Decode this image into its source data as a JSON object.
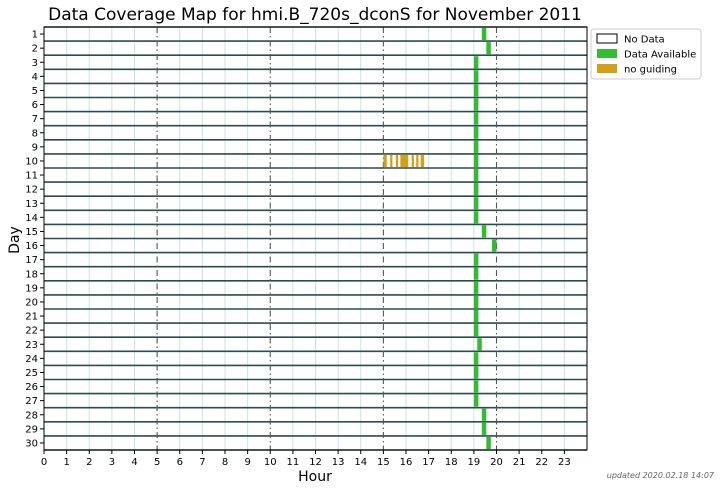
{
  "chart_data": {
    "type": "heatmap",
    "title": "Data Coverage Map for hmi.B_720s_dconS for November 2011",
    "xlabel": "Hour",
    "ylabel": "Day",
    "xlim": [
      0,
      24
    ],
    "x_ticks": [
      0,
      1,
      2,
      3,
      4,
      5,
      6,
      7,
      8,
      9,
      10,
      11,
      12,
      13,
      14,
      15,
      16,
      17,
      18,
      19,
      20,
      21,
      22,
      23
    ],
    "days": [
      1,
      2,
      3,
      4,
      5,
      6,
      7,
      8,
      9,
      10,
      11,
      12,
      13,
      14,
      15,
      16,
      17,
      18,
      19,
      20,
      21,
      22,
      23,
      24,
      25,
      26,
      27,
      28,
      29,
      30
    ],
    "major_hours": [
      5,
      10,
      15,
      20
    ],
    "legend": [
      {
        "label": "No Data",
        "color": "#ffffff"
      },
      {
        "label": "Data Available",
        "color": "#33bb33"
      },
      {
        "label": "no guiding",
        "color": "#d4a017"
      }
    ],
    "data_available": [
      {
        "day": 1,
        "start": 19.35,
        "end": 19.55
      },
      {
        "day": 2,
        "start": 19.55,
        "end": 19.75
      },
      {
        "day": 3,
        "start": 19.0,
        "end": 19.2
      },
      {
        "day": 4,
        "start": 19.0,
        "end": 19.2
      },
      {
        "day": 5,
        "start": 19.0,
        "end": 19.2
      },
      {
        "day": 6,
        "start": 19.0,
        "end": 19.2
      },
      {
        "day": 7,
        "start": 19.0,
        "end": 19.2
      },
      {
        "day": 8,
        "start": 19.0,
        "end": 19.2
      },
      {
        "day": 9,
        "start": 19.0,
        "end": 19.2
      },
      {
        "day": 10,
        "start": 19.0,
        "end": 19.2
      },
      {
        "day": 11,
        "start": 19.0,
        "end": 19.2
      },
      {
        "day": 12,
        "start": 19.0,
        "end": 19.2
      },
      {
        "day": 13,
        "start": 19.0,
        "end": 19.2
      },
      {
        "day": 14,
        "start": 19.0,
        "end": 19.2
      },
      {
        "day": 15,
        "start": 19.35,
        "end": 19.55
      },
      {
        "day": 16,
        "start": 19.8,
        "end": 20.0
      },
      {
        "day": 17,
        "start": 19.0,
        "end": 19.2
      },
      {
        "day": 18,
        "start": 19.0,
        "end": 19.2
      },
      {
        "day": 19,
        "start": 19.0,
        "end": 19.2
      },
      {
        "day": 20,
        "start": 19.0,
        "end": 19.2
      },
      {
        "day": 21,
        "start": 19.0,
        "end": 19.2
      },
      {
        "day": 22,
        "start": 19.0,
        "end": 19.2
      },
      {
        "day": 23,
        "start": 19.15,
        "end": 19.35
      },
      {
        "day": 24,
        "start": 19.0,
        "end": 19.2
      },
      {
        "day": 25,
        "start": 19.0,
        "end": 19.2
      },
      {
        "day": 26,
        "start": 19.0,
        "end": 19.2
      },
      {
        "day": 27,
        "start": 19.0,
        "end": 19.2
      },
      {
        "day": 28,
        "start": 19.35,
        "end": 19.55
      },
      {
        "day": 29,
        "start": 19.35,
        "end": 19.55
      },
      {
        "day": 30,
        "start": 19.55,
        "end": 19.75
      }
    ],
    "no_guiding": [
      {
        "day": 10,
        "start": 15.0,
        "end": 15.15
      },
      {
        "day": 10,
        "start": 15.3,
        "end": 15.4
      },
      {
        "day": 10,
        "start": 15.55,
        "end": 15.65
      },
      {
        "day": 10,
        "start": 15.75,
        "end": 16.1
      },
      {
        "day": 10,
        "start": 16.25,
        "end": 16.35
      },
      {
        "day": 10,
        "start": 16.45,
        "end": 16.55
      },
      {
        "day": 10,
        "start": 16.65,
        "end": 16.8
      }
    ],
    "grid": true,
    "legend_position": "top-right outside"
  },
  "footer": "updated 2020.02.18 14:07"
}
